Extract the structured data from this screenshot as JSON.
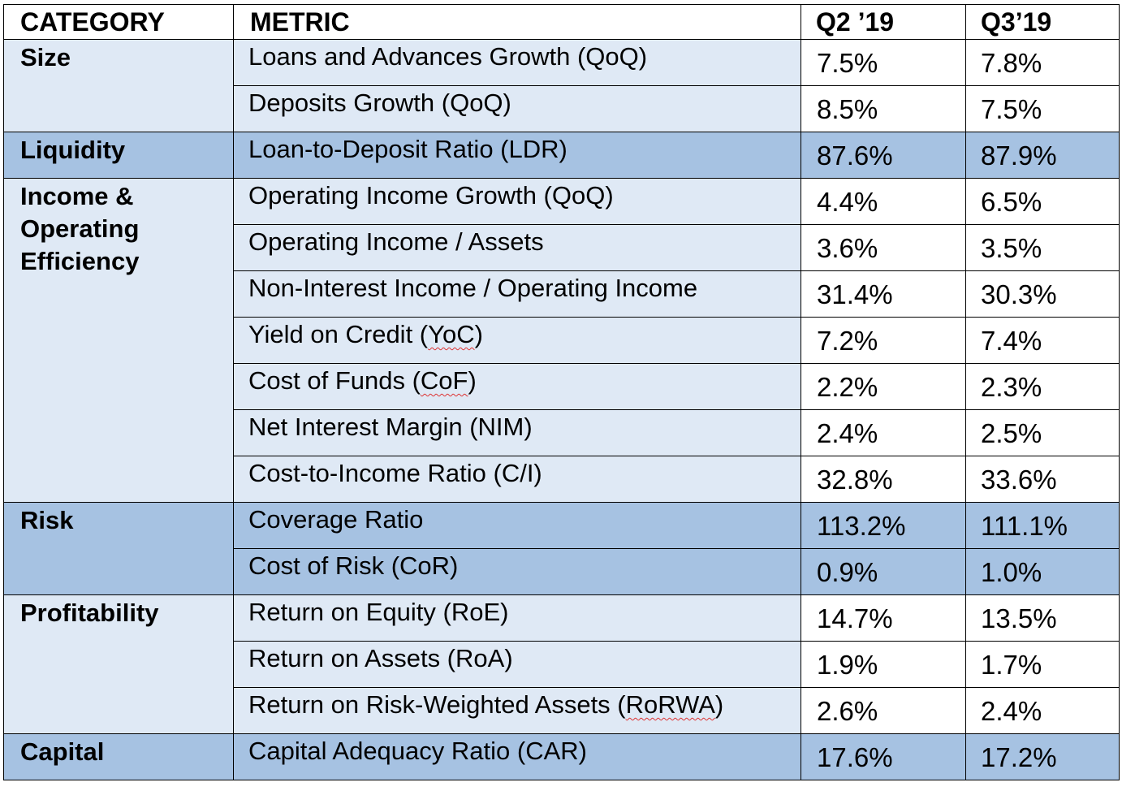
{
  "headers": {
    "category": "CATEGORY",
    "metric": "METRIC",
    "q2": "Q2 ’19",
    "q3": "Q3’19"
  },
  "groups": [
    {
      "category": "Size",
      "rows": [
        {
          "metric": "Loans and Advances Growth (QoQ)",
          "q2": "7.5%",
          "q3": "7.8%"
        },
        {
          "metric": "Deposits Growth (QoQ)",
          "q2": "8.5%",
          "q3": "7.5%"
        }
      ]
    },
    {
      "category": "Liquidity",
      "rows": [
        {
          "metric": "Loan-to-Deposit Ratio (LDR)",
          "q2": "87.6%",
          "q3": "87.9%"
        }
      ]
    },
    {
      "category_lines": [
        "Income &",
        "Operating",
        "Efficiency"
      ],
      "rows": [
        {
          "metric": "Operating Income Growth (QoQ)",
          "q2": "4.4%",
          "q3": "6.5%"
        },
        {
          "metric": "Operating Income / Assets",
          "q2": "3.6%",
          "q3": "3.5%"
        },
        {
          "metric": "Non-Interest Income / Operating Income",
          "q2": "31.4%",
          "q3": "30.3%"
        },
        {
          "metric_pre": "Yield on Credit (",
          "metric_abbr": "YoC",
          "metric_post": ")",
          "q2": "7.2%",
          "q3": "7.4%"
        },
        {
          "metric_pre": "Cost of Funds (",
          "metric_abbr": "CoF",
          "metric_post": ")",
          "q2": "2.2%",
          "q3": "2.3%"
        },
        {
          "metric": "Net Interest Margin (NIM)",
          "q2": "2.4%",
          "q3": "2.5%"
        },
        {
          "metric": "Cost-to-Income Ratio (C/I)",
          "q2": "32.8%",
          "q3": "33.6%"
        }
      ]
    },
    {
      "category": "Risk",
      "rows": [
        {
          "metric": "Coverage Ratio",
          "q2": "113.2%",
          "q3": "111.1%"
        },
        {
          "metric": "Cost of Risk (CoR)",
          "q2": "0.9%",
          "q3": "1.0%"
        }
      ]
    },
    {
      "category": "Profitability",
      "rows": [
        {
          "metric": "Return on Equity (RoE)",
          "q2": "14.7%",
          "q3": "13.5%"
        },
        {
          "metric": "Return on Assets (RoA)",
          "q2": "1.9%",
          "q3": "1.7%"
        },
        {
          "metric_pre": "Return on Risk-Weighted Assets (",
          "metric_abbr": "RoRWA",
          "metric_post": ")",
          "q2": "2.6%",
          "q3": "2.4%"
        }
      ]
    },
    {
      "category": "Capital",
      "rows": [
        {
          "metric": "Capital Adequacy Ratio (CAR)",
          "q2": "17.6%",
          "q3": "17.2%"
        }
      ]
    }
  ],
  "colors": {
    "light_fill": "#dfe9f5",
    "dark_fill": "#a6c2e2",
    "border": "#000000",
    "spellcheck_squiggle": "#dd3333"
  }
}
